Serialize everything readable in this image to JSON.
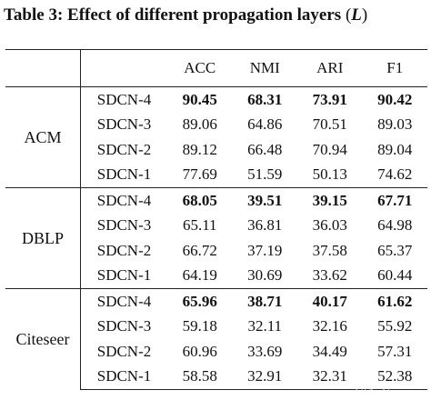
{
  "caption": {
    "label": "Table 3:",
    "title": "Effect of different propagation layers",
    "open": "(",
    "symbol": "L",
    "close": ")"
  },
  "header": [
    "",
    "",
    "ACC",
    "NMI",
    "ARI",
    "F1"
  ],
  "groups": [
    {
      "name": "ACM",
      "rows": [
        {
          "model": "SDCN-4",
          "acc": "90.45",
          "nmi": "68.31",
          "ari": "73.91",
          "f1": "90.42"
        },
        {
          "model": "SDCN-3",
          "acc": "89.06",
          "nmi": "64.86",
          "ari": "70.51",
          "f1": "89.03"
        },
        {
          "model": "SDCN-2",
          "acc": "89.12",
          "nmi": "66.48",
          "ari": "70.94",
          "f1": "89.04"
        },
        {
          "model": "SDCN-1",
          "acc": "77.69",
          "nmi": "51.59",
          "ari": "50.13",
          "f1": "74.62"
        }
      ]
    },
    {
      "name": "DBLP",
      "rows": [
        {
          "model": "SDCN-4",
          "acc": "68.05",
          "nmi": "39.51",
          "ari": "39.15",
          "f1": "67.71"
        },
        {
          "model": "SDCN-3",
          "acc": "65.11",
          "nmi": "36.81",
          "ari": "36.03",
          "f1": "64.98"
        },
        {
          "model": "SDCN-2",
          "acc": "66.72",
          "nmi": "37.19",
          "ari": "37.58",
          "f1": "65.37"
        },
        {
          "model": "SDCN-1",
          "acc": "64.19",
          "nmi": "30.69",
          "ari": "33.62",
          "f1": "60.44"
        }
      ]
    },
    {
      "name": "Citeseer",
      "rows": [
        {
          "model": "SDCN-4",
          "acc": "65.96",
          "nmi": "38.71",
          "ari": "40.17",
          "f1": "61.62"
        },
        {
          "model": "SDCN-3",
          "acc": "59.18",
          "nmi": "32.11",
          "ari": "32.16",
          "f1": "55.92"
        },
        {
          "model": "SDCN-2",
          "acc": "60.96",
          "nmi": "33.69",
          "ari": "34.49",
          "f1": "57.31"
        },
        {
          "model": "SDCN-1",
          "acc": "58.58",
          "nmi": "32.91",
          "ari": "32.31",
          "f1": "52.38"
        }
      ]
    }
  ],
  "bold_rows": [
    "SDCN-4"
  ],
  "watermark": "知乎 @Hucbs"
}
